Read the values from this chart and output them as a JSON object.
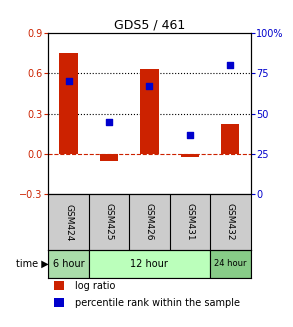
{
  "title": "GDS5 / 461",
  "samples": [
    "GSM424",
    "GSM425",
    "GSM426",
    "GSM431",
    "GSM432"
  ],
  "log_ratio": [
    0.75,
    -0.05,
    0.63,
    -0.02,
    0.22
  ],
  "percentile_rank": [
    70,
    45,
    67,
    37,
    80
  ],
  "bar_color": "#cc2200",
  "dot_color": "#0000cc",
  "left_ylim": [
    -0.3,
    0.9
  ],
  "right_ylim": [
    0,
    100
  ],
  "left_yticks": [
    -0.3,
    0.0,
    0.3,
    0.6,
    0.9
  ],
  "right_yticks": [
    0,
    25,
    50,
    75,
    100
  ],
  "right_yticklabels": [
    "0",
    "25",
    "50",
    "75",
    "100%"
  ],
  "dotted_lines": [
    0.3,
    0.6
  ],
  "zero_line": 0.0,
  "time_groups": [
    {
      "label": "6 hour",
      "indices": [
        0
      ],
      "color": "#aaddaa"
    },
    {
      "label": "12 hour",
      "indices": [
        1,
        2,
        3
      ],
      "color": "#bbffbb"
    },
    {
      "label": "24 hour",
      "indices": [
        4
      ],
      "color": "#88cc88"
    }
  ],
  "sample_label_bg": "#cccccc",
  "legend_log_ratio": "log ratio",
  "legend_percentile": "percentile rank within the sample",
  "time_label": "time",
  "bg_color": "#ffffff",
  "plot_bg": "#ffffff"
}
